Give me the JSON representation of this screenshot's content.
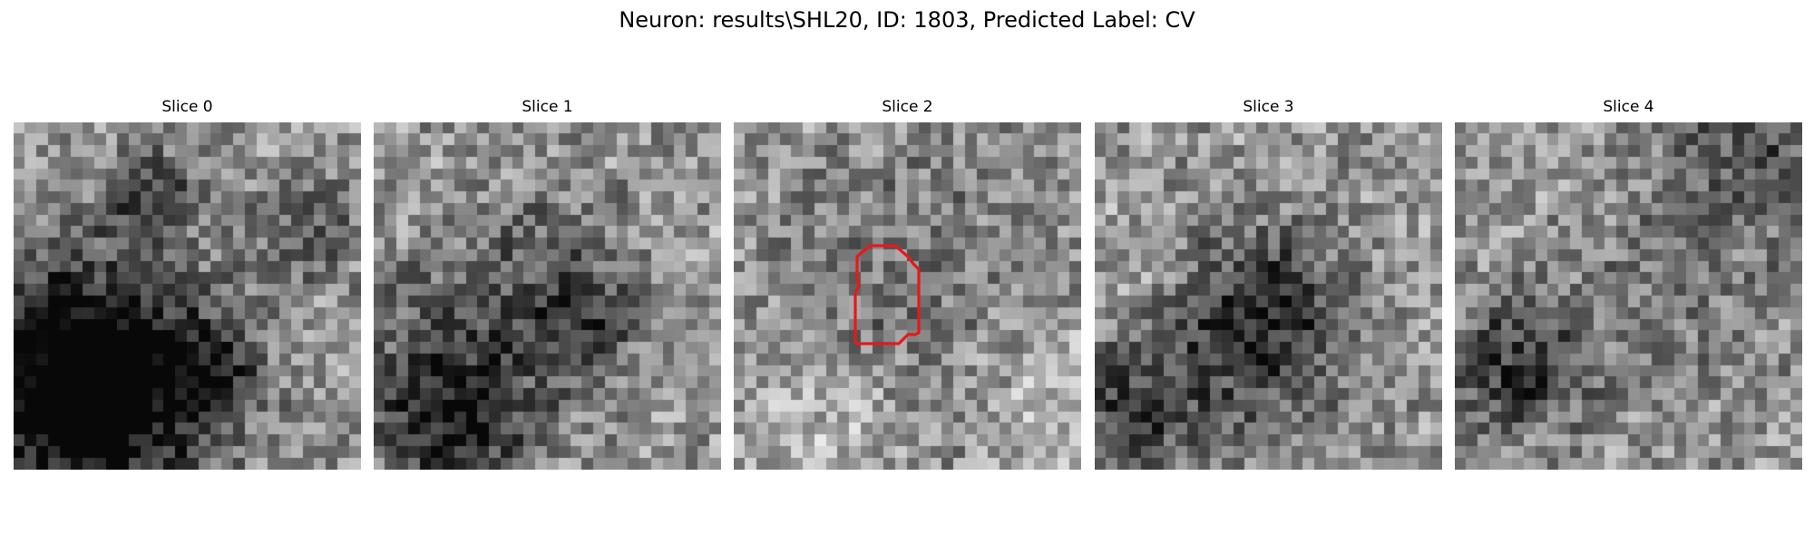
{
  "figure": {
    "title": "Neuron: results\\SHL20, ID: 1803, Predicted Label: CV"
  },
  "slices": [
    {
      "label": "Slice 0",
      "features": {
        "dark_blobs": [
          [
            4.0,
            2.0,
            0.9,
            0.8
          ],
          [
            8.5,
            3.0,
            1.2,
            0.5
          ],
          [
            5.7,
            7.2,
            1.0,
            0.8
          ],
          [
            2.0,
            7.2,
            2.5,
            1.2
          ],
          [
            2.2,
            8.0,
            2.0,
            0.95
          ]
        ],
        "has_roi_contour": false
      }
    },
    {
      "label": "Slice 1",
      "features": {
        "dark_blobs": [
          [
            4.8,
            4.4,
            1.8,
            0.45
          ],
          [
            2.2,
            7.4,
            2.0,
            0.8
          ],
          [
            2.5,
            9.0,
            1.3,
            0.6
          ],
          [
            6.3,
            6.0,
            1.0,
            0.6
          ]
        ],
        "has_roi_contour": false
      }
    },
    {
      "label": "Slice 2",
      "features": {
        "dark_blobs": [
          [
            5.0,
            5.3,
            3.0,
            0.35
          ]
        ],
        "has_roi_contour": true
      }
    },
    {
      "label": "Slice 3",
      "features": {
        "dark_blobs": [
          [
            4.8,
            5.5,
            1.8,
            0.85
          ],
          [
            0.8,
            8.4,
            1.4,
            0.6
          ],
          [
            3.0,
            7.2,
            2.2,
            0.35
          ]
        ],
        "has_roi_contour": false
      }
    },
    {
      "label": "Slice 4",
      "features": {
        "dark_blobs": [
          [
            1.8,
            7.0,
            1.4,
            0.9
          ],
          [
            8.5,
            0.8,
            1.6,
            0.6
          ],
          [
            6.5,
            4.8,
            2.2,
            0.3
          ]
        ],
        "has_roi_contour": false
      }
    }
  ],
  "roi_contour_color": "#e41a1c",
  "colormap": "gray"
}
